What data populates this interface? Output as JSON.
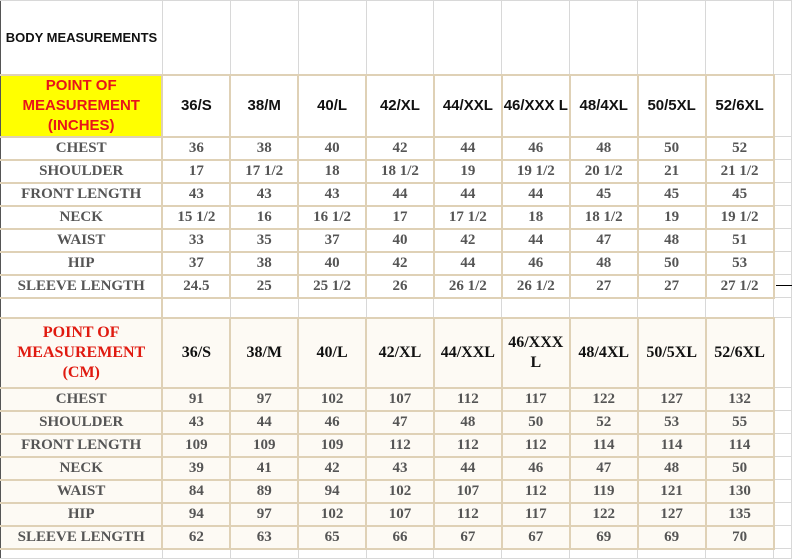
{
  "title": "BODY MEASUREMENTS",
  "sizes": [
    "36/S",
    "38/M",
    "40/L",
    "42/XL",
    "44/XXL",
    "46/XXX L",
    "48/4XL",
    "50/5XL",
    "52/6XL"
  ],
  "inches": {
    "header": "POINT OF MEASUREMENT (INCHES)",
    "rows": [
      {
        "label": "CHEST",
        "values": [
          "36",
          "38",
          "40",
          "42",
          "44",
          "46",
          "48",
          "50",
          "52"
        ]
      },
      {
        "label": "SHOULDER",
        "values": [
          "17",
          "17 1/2",
          "18",
          "18 1/2",
          "19",
          "19 1/2",
          "20 1/2",
          "21",
          "21 1/2"
        ]
      },
      {
        "label": "FRONT LENGTH",
        "values": [
          "43",
          "43",
          "43",
          "44",
          "44",
          "44",
          "45",
          "45",
          "45"
        ]
      },
      {
        "label": "NECK",
        "values": [
          "15 1/2",
          "16",
          "16 1/2",
          "17",
          "17 1/2",
          "18",
          "18 1/2",
          "19",
          "19 1/2"
        ]
      },
      {
        "label": "WAIST",
        "values": [
          "33",
          "35",
          "37",
          "40",
          "42",
          "44",
          "47",
          "48",
          "51"
        ]
      },
      {
        "label": "HIP",
        "values": [
          "37",
          "38",
          "40",
          "42",
          "44",
          "46",
          "48",
          "50",
          "53"
        ]
      },
      {
        "label": "SLEEVE LENGTH",
        "values": [
          "24.5",
          "25",
          "25 1/2",
          "26",
          "26 1/2",
          "26 1/2",
          "27",
          "27",
          "27 1/2"
        ]
      }
    ]
  },
  "cm": {
    "header": "POINT OF MEASUREMENT (CM)",
    "rows": [
      {
        "label": "CHEST",
        "values": [
          "91",
          "97",
          "102",
          "107",
          "112",
          "117",
          "122",
          "127",
          "132"
        ]
      },
      {
        "label": "SHOULDER",
        "values": [
          "43",
          "44",
          "46",
          "47",
          "48",
          "50",
          "52",
          "53",
          "55"
        ]
      },
      {
        "label": "FRONT LENGTH",
        "values": [
          "109",
          "109",
          "109",
          "112",
          "112",
          "112",
          "114",
          "114",
          "114"
        ]
      },
      {
        "label": "NECK",
        "values": [
          "39",
          "41",
          "42",
          "43",
          "44",
          "46",
          "47",
          "48",
          "50"
        ]
      },
      {
        "label": "WAIST",
        "values": [
          "84",
          "89",
          "94",
          "102",
          "107",
          "112",
          "119",
          "121",
          "130"
        ]
      },
      {
        "label": "HIP",
        "values": [
          "94",
          "97",
          "102",
          "107",
          "112",
          "117",
          "122",
          "127",
          "135"
        ]
      },
      {
        "label": "SLEEVE LENGTH",
        "values": [
          "62",
          "63",
          "65",
          "66",
          "67",
          "67",
          "69",
          "69",
          "70"
        ]
      }
    ]
  },
  "colors": {
    "header_bg": "#ffff00",
    "header_text": "#e8141a",
    "border": "#dfd1b6",
    "body_text": "#555555"
  }
}
